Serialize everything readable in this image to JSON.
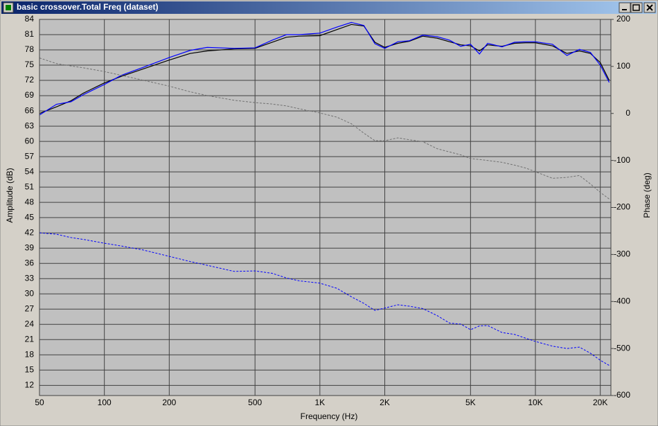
{
  "window_title": "basic crossover.Total Freq (dataset)",
  "chart_data": {
    "type": "line",
    "x_label": "Frequency (Hz)",
    "y_label": "Amplitude (dB)",
    "y2_label": "Phase (deg)",
    "x_scale": "log",
    "grid": true,
    "xlim": [
      50,
      22400
    ],
    "ylim": [
      10,
      84
    ],
    "y2lim": [
      -600,
      200
    ],
    "xticks": [
      50,
      100,
      200,
      500,
      {
        "value": 1000,
        "label": "1K"
      },
      {
        "value": 2000,
        "label": "2K"
      },
      {
        "value": 5000,
        "label": "5K"
      },
      {
        "value": 10000,
        "label": "10K"
      },
      {
        "value": 20000,
        "label": "20K"
      }
    ],
    "yticks": [
      12,
      15,
      18,
      21,
      24,
      27,
      30,
      33,
      36,
      39,
      42,
      45,
      48,
      51,
      54,
      57,
      60,
      63,
      66,
      69,
      72,
      75,
      78,
      81,
      84
    ],
    "y2ticks": [
      -600,
      -500,
      -400,
      -300,
      -200,
      -100,
      0,
      100,
      200
    ],
    "x": [
      50,
      60,
      70,
      80,
      100,
      120,
      150,
      200,
      250,
      300,
      400,
      500,
      600,
      700,
      800,
      1000,
      1200,
      1400,
      1600,
      1800,
      2000,
      2300,
      2600,
      3000,
      3500,
      4000,
      4500,
      5000,
      5500,
      6000,
      7000,
      8000,
      9000,
      10000,
      12000,
      14000,
      16000,
      18000,
      20000,
      22000
    ],
    "series": [
      {
        "color": "#000000",
        "dash": false,
        "values": [
          65.5,
          66.8,
          68,
          69.5,
          71.5,
          72.8,
          74.2,
          76,
          77.3,
          77.8,
          78.2,
          78.3,
          79.5,
          80.5,
          80.7,
          80.8,
          82,
          83,
          82.7,
          79.5,
          78.5,
          79.3,
          79.7,
          80.7,
          80.3,
          79.6,
          79,
          78.8,
          77.8,
          79,
          78.7,
          79.3,
          79.4,
          79.4,
          78.8,
          77.3,
          77.8,
          77.3,
          75.5,
          72
        ]
      },
      {
        "color": "#0000ff",
        "dash": false,
        "values": [
          65.2,
          67.3,
          67.8,
          69.2,
          71.2,
          73,
          74.5,
          76.5,
          77.9,
          78.5,
          78.3,
          78.4,
          79.9,
          81,
          81,
          81.3,
          82.5,
          83.4,
          82.8,
          79.2,
          78.3,
          79.6,
          79.8,
          80.9,
          80.6,
          79.9,
          78.7,
          79.1,
          77.2,
          79.3,
          78.6,
          79.5,
          79.6,
          79.6,
          79.1,
          76.9,
          78.1,
          77.5,
          75,
          71.6
        ]
      },
      {
        "color": "#707070",
        "dash": true,
        "axis": "y2",
        "values": [
          118,
          106,
          101,
          97,
          89,
          81,
          71,
          58,
          46,
          38,
          28,
          23,
          20,
          16,
          10,
          1,
          -8,
          -22,
          -42,
          -58,
          -58,
          -52,
          -56,
          -60,
          -75,
          -82,
          -88,
          -96,
          -98,
          -100,
          -104,
          -110,
          -116,
          -124,
          -138,
          -136,
          -132,
          -150,
          -168,
          -182
        ]
      },
      {
        "color": "#0000ff",
        "dash": true,
        "axis": "y2",
        "values": [
          -254,
          -257,
          -264,
          -268,
          -276,
          -282,
          -290,
          -304,
          -315,
          -323,
          -336,
          -335,
          -340,
          -350,
          -356,
          -361,
          -372,
          -390,
          -404,
          -419,
          -414,
          -407,
          -410,
          -415,
          -430,
          -446,
          -448,
          -460,
          -452,
          -451,
          -466,
          -470,
          -478,
          -485,
          -495,
          -500,
          -497,
          -510,
          -525,
          -536
        ]
      }
    ]
  }
}
